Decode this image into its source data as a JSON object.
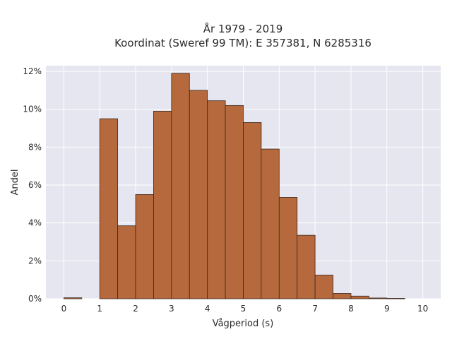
{
  "chart_data": {
    "type": "bar",
    "title_line1": "År 1979 - 2019",
    "title_line2": "Koordinat (Sweref 99 TM): E 357381, N 6285316",
    "xlabel": "Vågperiod (s)",
    "ylabel": "Andel",
    "xlim": [
      -0.5,
      10.5
    ],
    "ylim": [
      0,
      12.3
    ],
    "x_ticks": [
      0,
      1,
      2,
      3,
      4,
      5,
      6,
      7,
      8,
      9,
      10
    ],
    "x_tick_labels": [
      "0",
      "1",
      "2",
      "3",
      "4",
      "5",
      "6",
      "7",
      "8",
      "9",
      "10"
    ],
    "y_ticks": [
      0,
      2,
      4,
      6,
      8,
      10,
      12
    ],
    "y_tick_labels": [
      "0%",
      "2%",
      "4%",
      "6%",
      "8%",
      "10%",
      "12%"
    ],
    "bin_width": 0.5,
    "bins": [
      {
        "x0": 0.0,
        "value": 0.05
      },
      {
        "x0": 1.0,
        "value": 9.5
      },
      {
        "x0": 1.5,
        "value": 3.85
      },
      {
        "x0": 2.0,
        "value": 5.5
      },
      {
        "x0": 2.5,
        "value": 9.9
      },
      {
        "x0": 3.0,
        "value": 11.9
      },
      {
        "x0": 3.5,
        "value": 11.0
      },
      {
        "x0": 4.0,
        "value": 10.45
      },
      {
        "x0": 4.5,
        "value": 10.2
      },
      {
        "x0": 5.0,
        "value": 9.3
      },
      {
        "x0": 5.5,
        "value": 7.9
      },
      {
        "x0": 6.0,
        "value": 5.35
      },
      {
        "x0": 6.5,
        "value": 3.35
      },
      {
        "x0": 7.0,
        "value": 1.25
      },
      {
        "x0": 7.5,
        "value": 0.28
      },
      {
        "x0": 8.0,
        "value": 0.14
      },
      {
        "x0": 8.5,
        "value": 0.04
      },
      {
        "x0": 9.0,
        "value": 0.02
      }
    ],
    "bar_color": "#b5693c",
    "bar_edge_color": "#3b2a20",
    "plot_background": "#e5e6f0",
    "grid": true
  }
}
